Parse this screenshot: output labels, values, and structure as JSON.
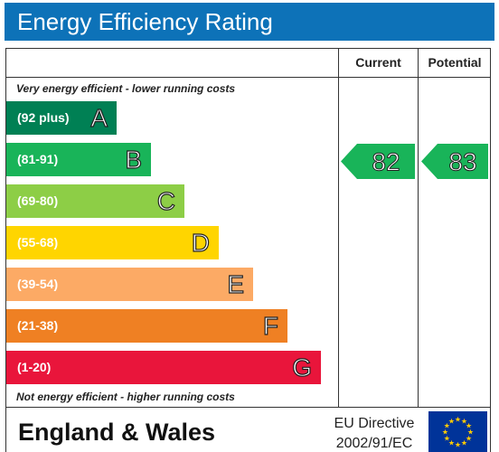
{
  "title": "Energy Efficiency Rating",
  "headers": {
    "current": "Current",
    "potential": "Potential"
  },
  "top_caption": "Very energy efficient - lower running costs",
  "bottom_caption": "Not energy efficient - higher running costs",
  "footer": {
    "region": "England & Wales",
    "directive_line1": "EU Directive",
    "directive_line2": "2002/91/EC"
  },
  "chart_data": {
    "type": "bar",
    "categories": [
      "A",
      "B",
      "C",
      "D",
      "E",
      "F",
      "G"
    ],
    "bands": [
      {
        "letter": "A",
        "range": "(92 plus)",
        "color": "#008054"
      },
      {
        "letter": "B",
        "range": "(81-91)",
        "color": "#19b459"
      },
      {
        "letter": "C",
        "range": "(69-80)",
        "color": "#8dce46"
      },
      {
        "letter": "D",
        "range": "(55-68)",
        "color": "#ffd500"
      },
      {
        "letter": "E",
        "range": "(39-54)",
        "color": "#fcaa65"
      },
      {
        "letter": "F",
        "range": "(21-38)",
        "color": "#ef8023"
      },
      {
        "letter": "G",
        "range": "(1-20)",
        "color": "#e9153b"
      }
    ],
    "current": {
      "value": 82,
      "band": "B"
    },
    "potential": {
      "value": 83,
      "band": "B"
    }
  }
}
